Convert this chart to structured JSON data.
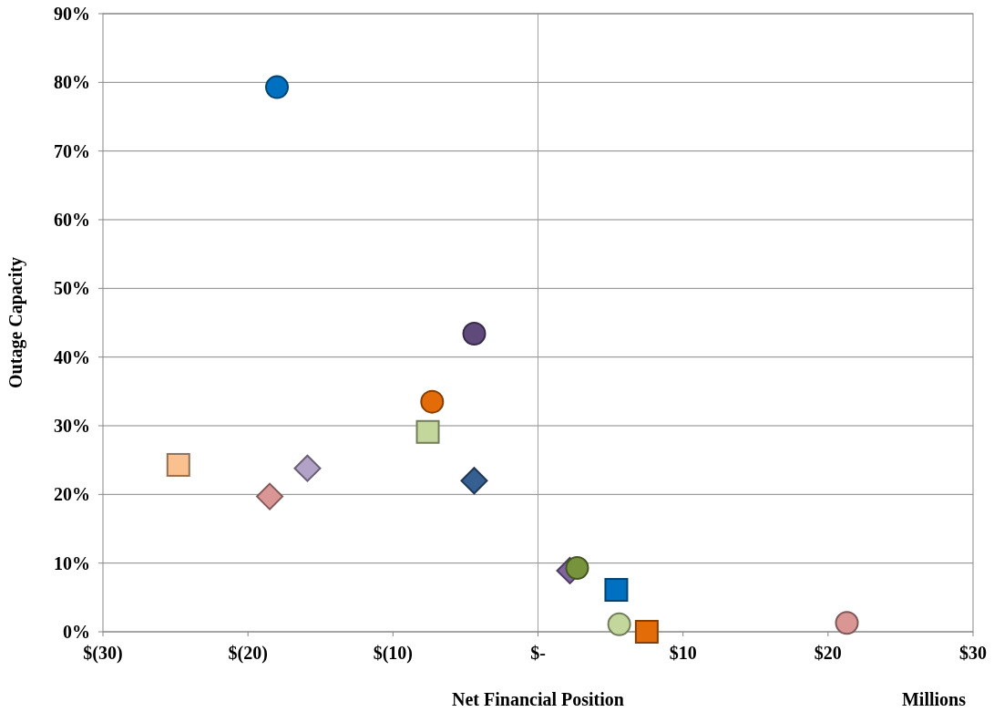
{
  "chart_data": {
    "type": "scatter",
    "xlabel": "Net Financial Position",
    "ylabel": "Outage Capacity",
    "annotations": [
      "Millions"
    ],
    "xlim": [
      -30,
      30
    ],
    "ylim": [
      0,
      90
    ],
    "xticks": [
      {
        "value": -30,
        "label": "$(30)"
      },
      {
        "value": -20,
        "label": "$(20)"
      },
      {
        "value": -10,
        "label": "$(10)"
      },
      {
        "value": 0,
        "label": "$-"
      },
      {
        "value": 10,
        "label": "$10"
      },
      {
        "value": 20,
        "label": "$20"
      },
      {
        "value": 30,
        "label": "$30"
      }
    ],
    "yticks": [
      {
        "value": 0,
        "label": "0%"
      },
      {
        "value": 10,
        "label": "10%"
      },
      {
        "value": 20,
        "label": "20%"
      },
      {
        "value": 30,
        "label": "30%"
      },
      {
        "value": 40,
        "label": "40%"
      },
      {
        "value": 50,
        "label": "50%"
      },
      {
        "value": 60,
        "label": "60%"
      },
      {
        "value": 70,
        "label": "70%"
      },
      {
        "value": 80,
        "label": "80%"
      },
      {
        "value": 90,
        "label": "90%"
      }
    ],
    "grid": "y",
    "ref_lines": [
      {
        "axis": "x",
        "value": 0,
        "color": "#a0a0a0"
      }
    ],
    "series": [
      {
        "color": "#0070c0",
        "marker": "circle",
        "x": [
          -18
        ],
        "values": [
          79.3
        ]
      },
      {
        "color": "#604a7b",
        "marker": "circle",
        "x": [
          -4.4
        ],
        "values": [
          43.4
        ]
      },
      {
        "color": "#e36c09",
        "marker": "circle",
        "x": [
          -7.3
        ],
        "values": [
          33.5
        ]
      },
      {
        "color": "#c3d69b",
        "marker": "square",
        "x": [
          -7.6
        ],
        "values": [
          29.1
        ]
      },
      {
        "color": "#376092",
        "marker": "diamond",
        "x": [
          -4.4
        ],
        "values": [
          22.0
        ]
      },
      {
        "color": "#fac090",
        "marker": "square",
        "x": [
          -24.8
        ],
        "values": [
          24.3
        ]
      },
      {
        "color": "#b3a2c7",
        "marker": "diamond",
        "x": [
          -15.9
        ],
        "values": [
          23.8
        ]
      },
      {
        "color": "#d99694",
        "marker": "diamond",
        "x": [
          -18.5
        ],
        "values": [
          19.7
        ]
      },
      {
        "color": "#8064a2",
        "marker": "diamond",
        "x": [
          2.2
        ],
        "values": [
          8.9
        ]
      },
      {
        "color": "#77933c",
        "marker": "circle",
        "x": [
          2.7
        ],
        "values": [
          9.3
        ]
      },
      {
        "color": "#0070c0",
        "marker": "square",
        "x": [
          5.4
        ],
        "values": [
          6.1
        ]
      },
      {
        "color": "#c3d69b",
        "marker": "circle",
        "x": [
          5.6
        ],
        "values": [
          1.1
        ]
      },
      {
        "color": "#e36c09",
        "marker": "square",
        "x": [
          7.5
        ],
        "values": [
          0
        ]
      },
      {
        "color": "#d99694",
        "marker": "circle",
        "x": [
          21.3
        ],
        "values": [
          1.3
        ]
      }
    ]
  }
}
